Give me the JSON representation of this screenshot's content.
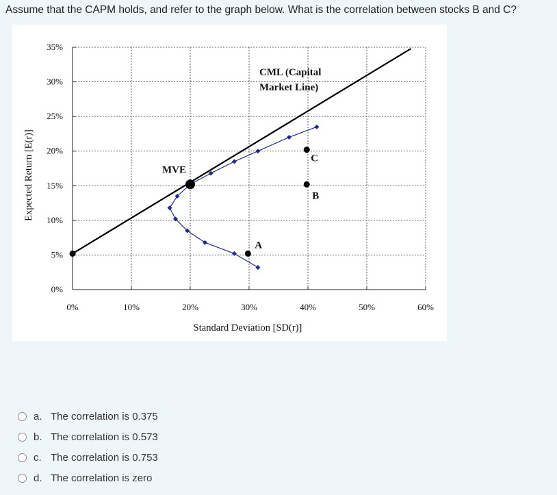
{
  "question": "Assume that the CAPM holds, and refer to the graph below. What is the correlation between stocks B and C?",
  "chart_data": {
    "type": "scatter",
    "xlabel": "Standard Deviation [SD(r)]",
    "ylabel": "Expected Return [E(r)]",
    "xlim": [
      0,
      60
    ],
    "ylim": [
      0,
      35
    ],
    "x_ticks": [
      "0%",
      "10%",
      "20%",
      "30%",
      "40%",
      "50%",
      "60%"
    ],
    "y_ticks": [
      "0%",
      "5%",
      "10%",
      "15%",
      "20%",
      "25%",
      "30%",
      "35%"
    ],
    "grid": true,
    "cml": {
      "label_line1": "CML (Capital",
      "label_line2": "Market Line)",
      "points": [
        [
          0,
          5.2
        ],
        [
          57.5,
          34.8
        ]
      ]
    },
    "frontier": [
      [
        31.5,
        3.2
      ],
      [
        27.5,
        5.2
      ],
      [
        22.5,
        6.8
      ],
      [
        19.5,
        8.5
      ],
      [
        17.5,
        10.2
      ],
      [
        16.5,
        11.8
      ],
      [
        17.8,
        13.5
      ],
      [
        20.0,
        15.2
      ],
      [
        23.5,
        16.8
      ],
      [
        27.5,
        18.5
      ],
      [
        31.5,
        20.0
      ],
      [
        36.8,
        22.0
      ],
      [
        41.5,
        23.5
      ]
    ],
    "points": [
      {
        "label": "MVE",
        "x": 20,
        "y": 15.2,
        "size": "large"
      },
      {
        "label": "A",
        "x": 29.8,
        "y": 5.2
      },
      {
        "label": "B",
        "x": 39.8,
        "y": 15.2
      },
      {
        "label": "C",
        "x": 39.8,
        "y": 20.2
      },
      {
        "label": "",
        "x": 0,
        "y": 5.2
      }
    ]
  },
  "options": [
    {
      "letter": "a.",
      "text": "The correlation is 0.375"
    },
    {
      "letter": "b.",
      "text": "The correlation is 0.573"
    },
    {
      "letter": "c.",
      "text": "The correlation is 0.753"
    },
    {
      "letter": "d.",
      "text": "The correlation is zero"
    }
  ]
}
